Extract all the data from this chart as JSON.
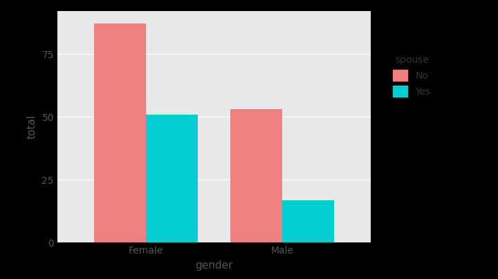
{
  "categories": [
    "Female",
    "Male"
  ],
  "series": {
    "No": [
      87,
      53
    ],
    "Yes": [
      51,
      17
    ]
  },
  "colors": {
    "No": "#F08080",
    "Yes": "#00CED1"
  },
  "xlabel": "gender",
  "ylabel": "total",
  "legend_title": "spouse",
  "ylim": [
    0,
    92
  ],
  "yticks": [
    0,
    25,
    50,
    75
  ],
  "bar_width": 0.38,
  "bg_color": "#E8E8E8",
  "plot_bg_color": "#E8E8E8",
  "outer_bg_color": "#000000",
  "legend_bg_color": "#E8E8E8",
  "grid_color": "#FFFFFF",
  "axis_fontsize": 11,
  "tick_fontsize": 10,
  "legend_fontsize": 10
}
